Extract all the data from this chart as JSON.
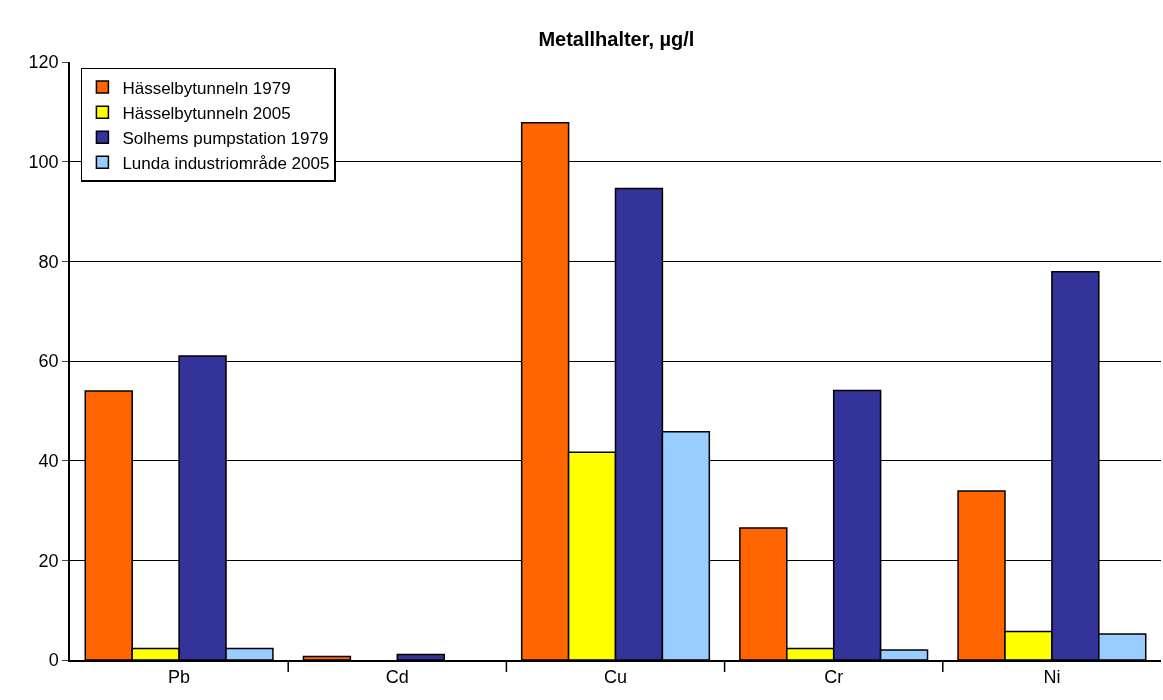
{
  "chart_data": {
    "type": "bar",
    "title": "Metallhalter, µg/l",
    "categories": [
      "Pb",
      "Cd",
      "Cu",
      "Cr",
      "Ni"
    ],
    "series": [
      {
        "name": "Hässelbytunneln 1979",
        "color": "#ff6600",
        "values": [
          54.0,
          0.7,
          107.8,
          26.5,
          33.9
        ]
      },
      {
        "name": "Hässelbytunneln 2005",
        "color": "#ffff00",
        "values": [
          2.3,
          null,
          41.7,
          2.3,
          5.7
        ]
      },
      {
        "name": "Solhems pumpstation 1979",
        "color": "#333399",
        "values": [
          61.0,
          1.1,
          94.6,
          54.1,
          77.9
        ]
      },
      {
        "name": "Lunda industriområde 2005",
        "color": "#99ccff",
        "values": [
          2.3,
          null,
          45.8,
          2.0,
          5.2
        ]
      }
    ],
    "ylim": [
      0,
      120
    ],
    "yticks": [
      0,
      20,
      40,
      60,
      80,
      100,
      120
    ],
    "grid": "y",
    "legend": "top left"
  }
}
